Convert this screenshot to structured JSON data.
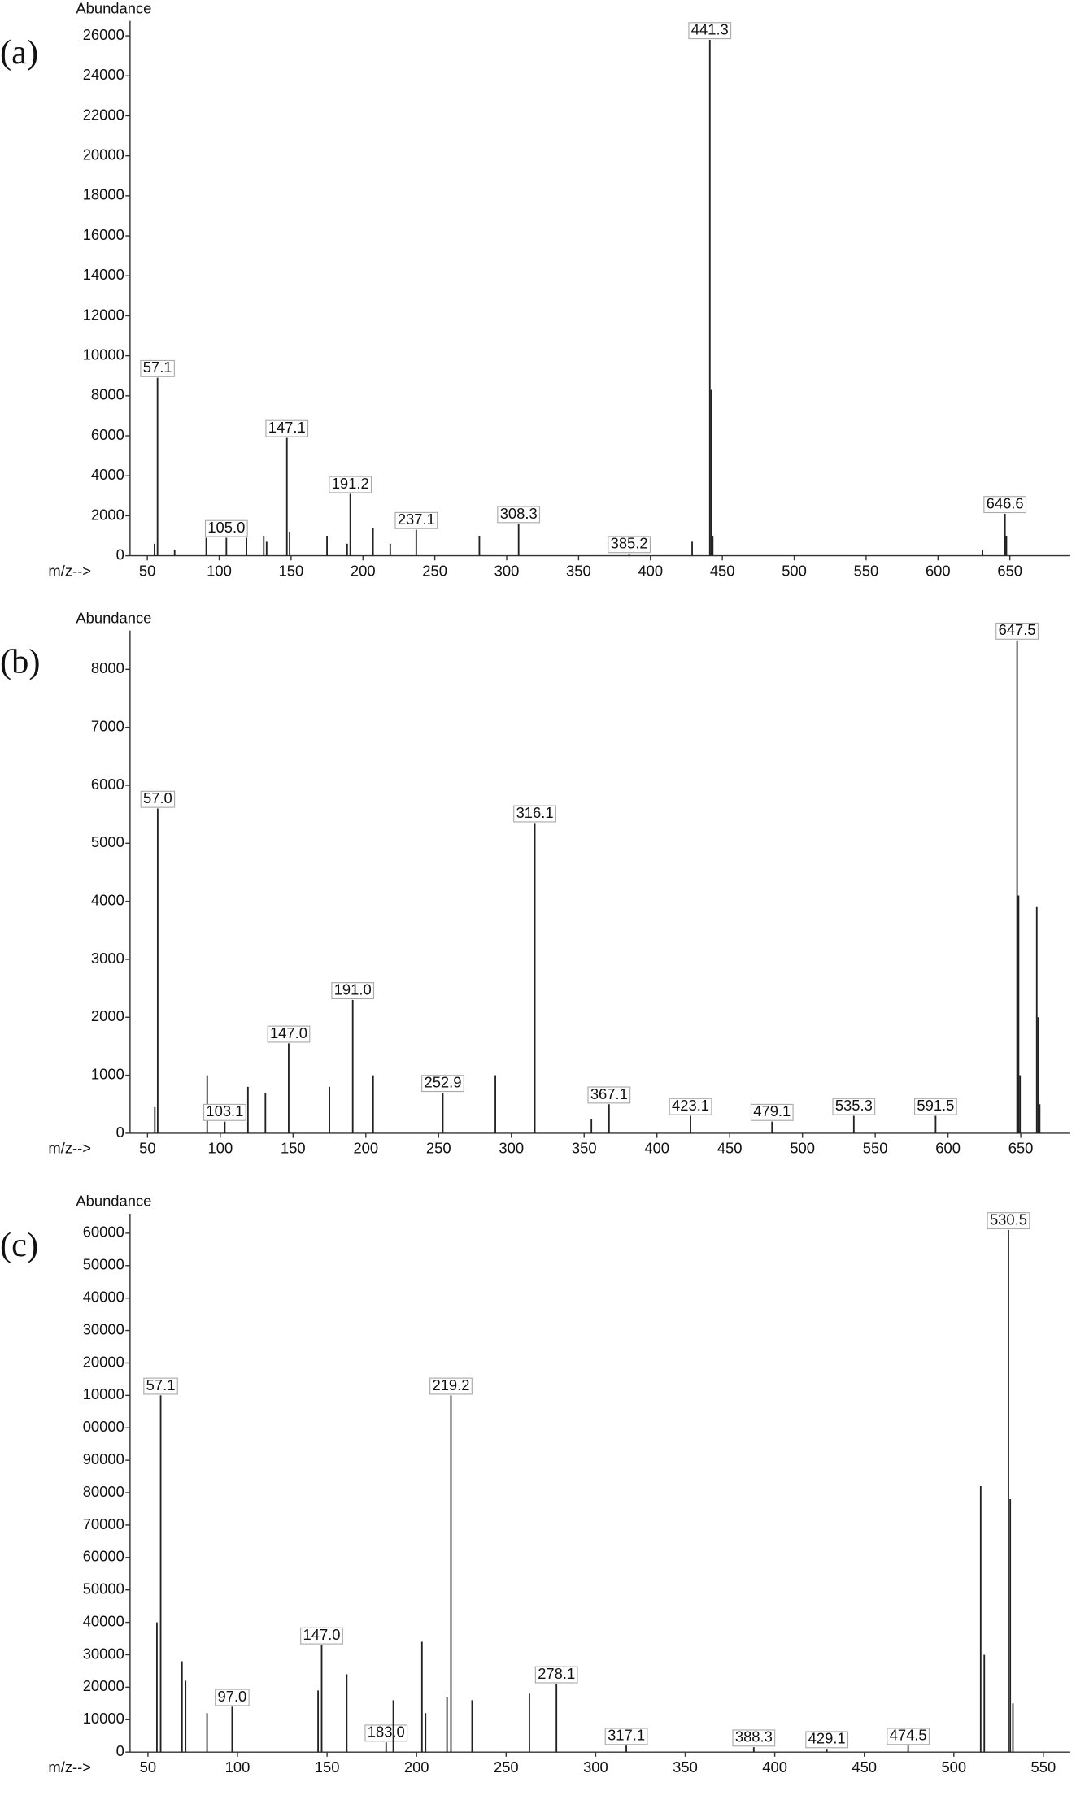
{
  "chart_data": [
    {
      "type": "stem",
      "panel": "(a)",
      "y_label": "Abundance",
      "x_label": "m/z-->",
      "color": "#222",
      "x": [
        55,
        57.1,
        69,
        91,
        105.0,
        119,
        131,
        133,
        147.1,
        149,
        175,
        189,
        191.2,
        207,
        219,
        237.1,
        281,
        308.3,
        385.2,
        429,
        441.3,
        442.3,
        443.3,
        631,
        646.6,
        647.6
      ],
      "x_labels": [
        null,
        "57.1",
        null,
        null,
        "105.0",
        null,
        null,
        null,
        "147.1",
        null,
        null,
        null,
        "191.2",
        null,
        null,
        "237.1",
        null,
        "308.3",
        "385.2",
        null,
        "441.3",
        null,
        null,
        null,
        "646.6",
        null
      ],
      "values": [
        600,
        8900,
        300,
        900,
        900,
        900,
        1000,
        700,
        5900,
        1200,
        1000,
        600,
        3100,
        1400,
        600,
        1300,
        1000,
        1600,
        100,
        700,
        25800,
        8300,
        1000,
        300,
        2100,
        1000
      ],
      "xlim": [
        38,
        692
      ],
      "xticks": [
        50,
        100,
        150,
        200,
        250,
        300,
        350,
        400,
        450,
        500,
        550,
        600,
        650
      ],
      "ylim": [
        0,
        26750
      ],
      "yticks": [
        0,
        2000,
        4000,
        6000,
        8000,
        10000,
        12000,
        14000,
        16000,
        18000,
        20000,
        22000,
        24000,
        26000
      ]
    },
    {
      "type": "stem",
      "panel": "(b)",
      "y_label": "Abundance",
      "x_label": "m/z-->",
      "color": "#222",
      "x": [
        55,
        57.0,
        91,
        103.1,
        119,
        131,
        147.0,
        175,
        191.0,
        205,
        252.9,
        289,
        316.1,
        355,
        367.1,
        423.1,
        479.1,
        535.3,
        591.5,
        647.5,
        648.5,
        649.5,
        661,
        662,
        663
      ],
      "x_labels": [
        null,
        "57.0",
        null,
        "103.1",
        null,
        null,
        "147.0",
        null,
        "191.0",
        null,
        "252.9",
        null,
        "316.1",
        null,
        "367.1",
        "423.1",
        "479.1",
        "535.3",
        "591.5",
        "647.5",
        null,
        null,
        null,
        null,
        null
      ],
      "values": [
        450,
        5600,
        1000,
        200,
        800,
        700,
        1550,
        800,
        2300,
        1000,
        700,
        1000,
        5350,
        250,
        500,
        300,
        200,
        300,
        300,
        8500,
        4100,
        1000,
        3900,
        2000,
        500
      ],
      "xlim": [
        38,
        684
      ],
      "xticks": [
        50,
        100,
        150,
        200,
        250,
        300,
        350,
        400,
        450,
        500,
        550,
        600,
        650
      ],
      "ylim": [
        0,
        8670
      ],
      "yticks": [
        0,
        1000,
        2000,
        3000,
        4000,
        5000,
        6000,
        7000,
        8000
      ]
    },
    {
      "type": "stem",
      "panel": "(c)",
      "y_label": "Abundance",
      "x_label": "m/z-->",
      "color": "#222",
      "x": [
        55,
        57.1,
        69,
        71,
        83,
        97.0,
        145,
        147.0,
        161,
        183.0,
        187,
        203,
        205,
        217,
        219.2,
        231,
        263,
        278.1,
        317.1,
        388.3,
        429.1,
        474.5,
        515,
        517,
        530.5,
        531.5,
        533
      ],
      "x_labels": [
        null,
        "57.1",
        null,
        null,
        null,
        "97.0",
        null,
        "147.0",
        null,
        "183.0",
        null,
        null,
        null,
        null,
        "219.2",
        null,
        null,
        "278.1",
        "317.1",
        "388.3",
        "429.1",
        "474.5",
        null,
        null,
        "530.5",
        null,
        null
      ],
      "values": [
        40000,
        110000,
        28000,
        22000,
        12000,
        14000,
        19000,
        33000,
        24000,
        3000,
        16000,
        34000,
        12000,
        17000,
        110000,
        16000,
        18000,
        21000,
        2000,
        1500,
        1000,
        2000,
        82000,
        30000,
        161000,
        78000,
        15000
      ],
      "xlim": [
        40,
        565
      ],
      "xticks": [
        50,
        100,
        150,
        200,
        250,
        300,
        350,
        400,
        450,
        500,
        550
      ],
      "ylim": [
        0,
        166000
      ],
      "yticks": [
        0,
        10000,
        20000,
        30000,
        40000,
        50000,
        60000,
        70000,
        80000,
        90000,
        {
          "value": 100000,
          "label": "00000"
        },
        {
          "value": 110000,
          "label": "10000"
        },
        {
          "value": 120000,
          "label": "20000"
        },
        {
          "value": 130000,
          "label": "30000"
        },
        {
          "value": 140000,
          "label": "40000"
        },
        {
          "value": 150000,
          "label": "50000"
        },
        {
          "value": 160000,
          "label": "60000"
        }
      ]
    }
  ]
}
